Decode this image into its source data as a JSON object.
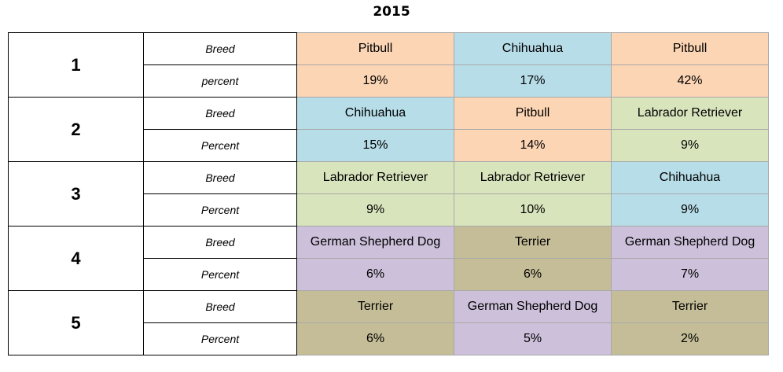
{
  "title": "2015",
  "colors": {
    "Pitbull": "#fcd5b4",
    "Chihuahua": "#b7dde8",
    "Labrador Retriever": "#d8e4bc",
    "German Shepherd Dog": "#ccc0da",
    "Terrier": "#c4bd97"
  },
  "rows": [
    {
      "rank": "1",
      "breed_label": "Breed",
      "percent_label": "percent",
      "breeds": [
        "Pitbull",
        "Chihuahua",
        "Pitbull"
      ],
      "percents": [
        "19%",
        "17%",
        "42%"
      ]
    },
    {
      "rank": "2",
      "breed_label": "Breed",
      "percent_label": "Percent",
      "breeds": [
        "Chihuahua",
        "Pitbull",
        "Labrador Retriever"
      ],
      "percents": [
        "15%",
        "14%",
        "9%"
      ]
    },
    {
      "rank": "3",
      "breed_label": "Breed",
      "percent_label": "Percent",
      "breeds": [
        "Labrador Retriever",
        "Labrador Retriever",
        "Chihuahua"
      ],
      "percents": [
        "9%",
        "10%",
        "9%"
      ]
    },
    {
      "rank": "4",
      "breed_label": "Breed",
      "percent_label": "Percent",
      "breeds": [
        "German Shepherd Dog",
        "Terrier",
        "German Shepherd Dog"
      ],
      "percents": [
        "6%",
        "6%",
        "7%"
      ]
    },
    {
      "rank": "5",
      "breed_label": "Breed",
      "percent_label": "Percent",
      "breeds": [
        "Terrier",
        "German Shepherd Dog",
        "Terrier"
      ],
      "percents": [
        "6%",
        "5%",
        "2%"
      ]
    }
  ]
}
